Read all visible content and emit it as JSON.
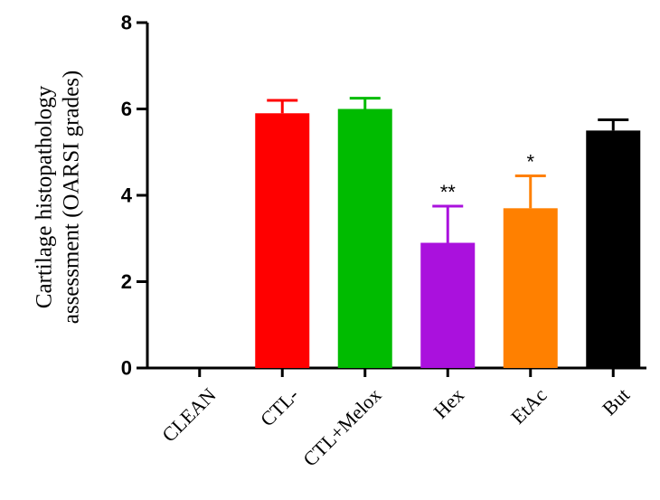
{
  "chart_data": {
    "type": "bar",
    "title": "",
    "xlabel": "",
    "ylabel_lines": [
      "Cartilage histopathology",
      "assessment (OARSI grades)"
    ],
    "categories": [
      "CLEAN",
      "CTL-",
      "CTL+Melox",
      "Hex",
      "EtAc",
      "But"
    ],
    "values": [
      0,
      5.9,
      6.0,
      2.9,
      3.7,
      5.5
    ],
    "errors": [
      0,
      0.3,
      0.25,
      0.85,
      0.75,
      0.25
    ],
    "significance": [
      "",
      "",
      "",
      "**",
      "*",
      ""
    ],
    "colors": [
      "#ffffff",
      "#ff0000",
      "#00bb00",
      "#aa11dd",
      "#ff8000",
      "#000000"
    ],
    "ylim": [
      0,
      8
    ],
    "yticks": [
      0,
      2,
      4,
      6,
      8
    ],
    "grid": false,
    "legend": "none"
  }
}
